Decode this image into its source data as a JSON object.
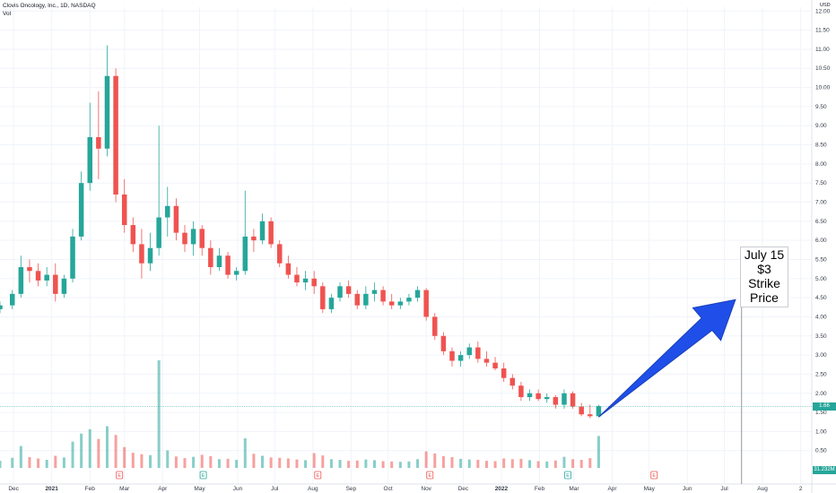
{
  "header": {
    "title": "Clovis Oncology, Inc., 1D, NASDAQ",
    "volume_label": "Vol"
  },
  "axis": {
    "currency": "USD"
  },
  "price_tag": {
    "value": "1.66",
    "color": "#26a69a"
  },
  "volume_tag": {
    "value": "31.232M",
    "color": "#26a69a"
  },
  "annotation": {
    "lines": [
      "July 15",
      "$3",
      "Strike",
      "Price"
    ]
  },
  "events": [
    {
      "label": "E",
      "color": "#ef5350",
      "x": "2021-02-25"
    },
    {
      "label": "E",
      "color": "#26a69a",
      "x": "2021-05-04"
    },
    {
      "label": "E",
      "color": "#ef5350",
      "x": "2021-08-05"
    },
    {
      "label": "E",
      "color": "#ef5350",
      "x": "2021-11-04"
    },
    {
      "label": "E",
      "color": "#26a69a",
      "x": "2022-02-24"
    },
    {
      "label": "E",
      "color": "#ef5350",
      "x": "2022-05-05"
    }
  ],
  "chart_data": {
    "type": "candlestick",
    "title": "Clovis Oncology, Inc., 1D, NASDAQ",
    "y_ticks": [
      "0.50",
      "1.00",
      "1.50",
      "2.00",
      "2.50",
      "3.00",
      "3.50",
      "4.00",
      "4.50",
      "5.00",
      "5.50",
      "6.00",
      "6.50",
      "7.00",
      "7.50",
      "8.00",
      "8.50",
      "9.00",
      "9.50",
      "10.00",
      "10.50",
      "11.00",
      "11.50",
      "12.00"
    ],
    "x_ticks": [
      {
        "label": "Dec",
        "x": "2020-12-01"
      },
      {
        "label": "2021",
        "x": "2021-01-01"
      },
      {
        "label": "Feb",
        "x": "2021-02-01"
      },
      {
        "label": "Mar",
        "x": "2021-03-01"
      },
      {
        "label": "Apr",
        "x": "2021-04-01"
      },
      {
        "label": "May",
        "x": "2021-05-01"
      },
      {
        "label": "Jun",
        "x": "2021-06-01"
      },
      {
        "label": "Jul",
        "x": "2021-07-01"
      },
      {
        "label": "Aug",
        "x": "2021-08-01"
      },
      {
        "label": "Sep",
        "x": "2021-09-01"
      },
      {
        "label": "Oct",
        "x": "2021-10-01"
      },
      {
        "label": "Nov",
        "x": "2021-11-01"
      },
      {
        "label": "Dec",
        "x": "2021-12-01"
      },
      {
        "label": "2022",
        "x": "2022-01-01"
      },
      {
        "label": "Feb",
        "x": "2022-02-01"
      },
      {
        "label": "Mar",
        "x": "2022-03-01"
      },
      {
        "label": "Apr",
        "x": "2022-04-01"
      },
      {
        "label": "May",
        "x": "2022-05-01"
      },
      {
        "label": "Jun",
        "x": "2022-06-01"
      },
      {
        "label": "Jul",
        "x": "2022-07-01"
      },
      {
        "label": "Aug",
        "x": "2022-08-01"
      },
      {
        "label": "2",
        "x": "2022-09-01"
      }
    ],
    "ylim": [
      0.4,
      12.1
    ],
    "xlim": [
      "2020-11-20",
      "2022-09-10"
    ],
    "current_price": 1.66,
    "annotation_date": "2022-07-15",
    "arrow": {
      "from": [
        "2022-03-21",
        1.38
      ],
      "to": [
        "2022-07-10",
        4.45
      ]
    },
    "series": [
      {
        "x": "2020-11-20",
        "o": 4.2,
        "h": 4.4,
        "l": 4.1,
        "c": 4.3,
        "v": 2.1
      },
      {
        "x": "2020-11-30",
        "o": 4.3,
        "h": 4.7,
        "l": 4.2,
        "c": 4.6,
        "v": 3.0
      },
      {
        "x": "2020-12-07",
        "o": 4.6,
        "h": 5.6,
        "l": 4.5,
        "c": 5.3,
        "v": 6.5
      },
      {
        "x": "2020-12-14",
        "o": 5.3,
        "h": 5.5,
        "l": 4.9,
        "c": 5.2,
        "v": 3.2
      },
      {
        "x": "2020-12-21",
        "o": 5.2,
        "h": 5.4,
        "l": 4.8,
        "c": 4.95,
        "v": 2.8
      },
      {
        "x": "2020-12-28",
        "o": 4.95,
        "h": 5.3,
        "l": 4.8,
        "c": 5.1,
        "v": 2.4
      },
      {
        "x": "2021-01-04",
        "o": 5.1,
        "h": 5.4,
        "l": 4.4,
        "c": 4.6,
        "v": 3.6
      },
      {
        "x": "2021-01-11",
        "o": 4.6,
        "h": 5.1,
        "l": 4.5,
        "c": 5.0,
        "v": 3.1
      },
      {
        "x": "2021-01-18",
        "o": 5.0,
        "h": 6.3,
        "l": 4.9,
        "c": 6.1,
        "v": 7.8
      },
      {
        "x": "2021-01-25",
        "o": 6.1,
        "h": 7.8,
        "l": 6.0,
        "c": 7.5,
        "v": 10.2
      },
      {
        "x": "2021-02-01",
        "o": 7.5,
        "h": 9.6,
        "l": 7.3,
        "c": 8.7,
        "v": 11.5
      },
      {
        "x": "2021-02-08",
        "o": 8.7,
        "h": 9.9,
        "l": 7.6,
        "c": 8.4,
        "v": 8.6
      },
      {
        "x": "2021-02-15",
        "o": 8.4,
        "h": 11.1,
        "l": 8.2,
        "c": 10.3,
        "v": 12.4
      },
      {
        "x": "2021-02-22",
        "o": 10.3,
        "h": 10.5,
        "l": 7.0,
        "c": 7.2,
        "v": 9.8
      },
      {
        "x": "2021-03-01",
        "o": 7.2,
        "h": 7.6,
        "l": 6.2,
        "c": 6.4,
        "v": 6.2
      },
      {
        "x": "2021-03-08",
        "o": 6.4,
        "h": 6.6,
        "l": 5.7,
        "c": 5.9,
        "v": 4.5
      },
      {
        "x": "2021-03-15",
        "o": 5.9,
        "h": 6.3,
        "l": 5.0,
        "c": 5.4,
        "v": 4.1
      },
      {
        "x": "2021-03-22",
        "o": 5.4,
        "h": 6.2,
        "l": 5.2,
        "c": 5.8,
        "v": 3.8
      },
      {
        "x": "2021-03-29",
        "o": 5.8,
        "h": 9.0,
        "l": 5.6,
        "c": 6.6,
        "v": 32.0
      },
      {
        "x": "2021-04-05",
        "o": 6.6,
        "h": 7.4,
        "l": 6.1,
        "c": 6.9,
        "v": 5.2
      },
      {
        "x": "2021-04-12",
        "o": 6.9,
        "h": 7.1,
        "l": 6.0,
        "c": 6.2,
        "v": 3.4
      },
      {
        "x": "2021-04-19",
        "o": 6.2,
        "h": 6.4,
        "l": 5.7,
        "c": 5.9,
        "v": 2.9
      },
      {
        "x": "2021-04-26",
        "o": 5.9,
        "h": 6.5,
        "l": 5.6,
        "c": 6.3,
        "v": 3.3
      },
      {
        "x": "2021-05-03",
        "o": 6.3,
        "h": 6.4,
        "l": 5.6,
        "c": 5.8,
        "v": 3.9
      },
      {
        "x": "2021-05-10",
        "o": 5.8,
        "h": 6.0,
        "l": 5.1,
        "c": 5.3,
        "v": 3.5
      },
      {
        "x": "2021-05-17",
        "o": 5.3,
        "h": 5.8,
        "l": 5.2,
        "c": 5.6,
        "v": 2.6
      },
      {
        "x": "2021-05-24",
        "o": 5.6,
        "h": 5.7,
        "l": 5.0,
        "c": 5.1,
        "v": 2.7
      },
      {
        "x": "2021-05-31",
        "o": 5.1,
        "h": 5.3,
        "l": 4.95,
        "c": 5.2,
        "v": 2.4
      },
      {
        "x": "2021-06-07",
        "o": 5.2,
        "h": 7.3,
        "l": 5.1,
        "c": 6.1,
        "v": 8.8
      },
      {
        "x": "2021-06-14",
        "o": 6.1,
        "h": 6.3,
        "l": 5.7,
        "c": 6.0,
        "v": 4.2
      },
      {
        "x": "2021-06-21",
        "o": 6.0,
        "h": 6.7,
        "l": 5.9,
        "c": 6.5,
        "v": 3.6
      },
      {
        "x": "2021-06-28",
        "o": 6.5,
        "h": 6.6,
        "l": 5.8,
        "c": 5.9,
        "v": 3.1
      },
      {
        "x": "2021-07-05",
        "o": 5.9,
        "h": 6.0,
        "l": 5.3,
        "c": 5.4,
        "v": 3.0
      },
      {
        "x": "2021-07-12",
        "o": 5.4,
        "h": 5.6,
        "l": 5.0,
        "c": 5.1,
        "v": 2.8
      },
      {
        "x": "2021-07-19",
        "o": 5.1,
        "h": 5.3,
        "l": 4.8,
        "c": 4.9,
        "v": 2.5
      },
      {
        "x": "2021-07-26",
        "o": 4.9,
        "h": 5.2,
        "l": 4.7,
        "c": 5.0,
        "v": 2.3
      },
      {
        "x": "2021-08-02",
        "o": 5.0,
        "h": 5.2,
        "l": 4.6,
        "c": 4.8,
        "v": 4.4
      },
      {
        "x": "2021-08-09",
        "o": 4.8,
        "h": 4.9,
        "l": 4.1,
        "c": 4.2,
        "v": 3.7
      },
      {
        "x": "2021-08-16",
        "o": 4.2,
        "h": 4.6,
        "l": 4.1,
        "c": 4.5,
        "v": 2.6
      },
      {
        "x": "2021-08-23",
        "o": 4.5,
        "h": 4.9,
        "l": 4.4,
        "c": 4.8,
        "v": 2.4
      },
      {
        "x": "2021-08-30",
        "o": 4.8,
        "h": 4.95,
        "l": 4.5,
        "c": 4.6,
        "v": 2.1
      },
      {
        "x": "2021-09-06",
        "o": 4.6,
        "h": 4.7,
        "l": 4.2,
        "c": 4.3,
        "v": 2.2
      },
      {
        "x": "2021-09-13",
        "o": 4.3,
        "h": 4.8,
        "l": 4.2,
        "c": 4.6,
        "v": 2.5
      },
      {
        "x": "2021-09-20",
        "o": 4.6,
        "h": 4.9,
        "l": 4.4,
        "c": 4.7,
        "v": 2.3
      },
      {
        "x": "2021-09-27",
        "o": 4.7,
        "h": 4.8,
        "l": 4.3,
        "c": 4.4,
        "v": 2.0
      },
      {
        "x": "2021-10-04",
        "o": 4.4,
        "h": 4.6,
        "l": 4.2,
        "c": 4.3,
        "v": 1.9
      },
      {
        "x": "2021-10-11",
        "o": 4.3,
        "h": 4.5,
        "l": 4.2,
        "c": 4.4,
        "v": 1.8
      },
      {
        "x": "2021-10-18",
        "o": 4.4,
        "h": 4.6,
        "l": 4.3,
        "c": 4.5,
        "v": 1.9
      },
      {
        "x": "2021-10-25",
        "o": 4.5,
        "h": 4.8,
        "l": 4.4,
        "c": 4.7,
        "v": 2.6
      },
      {
        "x": "2021-11-01",
        "o": 4.7,
        "h": 4.75,
        "l": 3.9,
        "c": 4.0,
        "v": 4.9
      },
      {
        "x": "2021-11-08",
        "o": 4.0,
        "h": 4.1,
        "l": 3.4,
        "c": 3.5,
        "v": 4.3
      },
      {
        "x": "2021-11-15",
        "o": 3.5,
        "h": 3.6,
        "l": 3.0,
        "c": 3.1,
        "v": 3.5
      },
      {
        "x": "2021-11-22",
        "o": 3.1,
        "h": 3.2,
        "l": 2.7,
        "c": 2.85,
        "v": 3.2
      },
      {
        "x": "2021-11-29",
        "o": 2.85,
        "h": 3.1,
        "l": 2.7,
        "c": 3.0,
        "v": 2.7
      },
      {
        "x": "2021-12-06",
        "o": 3.0,
        "h": 3.3,
        "l": 2.9,
        "c": 3.2,
        "v": 2.5
      },
      {
        "x": "2021-12-13",
        "o": 3.2,
        "h": 3.35,
        "l": 2.8,
        "c": 2.9,
        "v": 2.4
      },
      {
        "x": "2021-12-20",
        "o": 2.9,
        "h": 3.1,
        "l": 2.7,
        "c": 2.8,
        "v": 2.1
      },
      {
        "x": "2021-12-27",
        "o": 2.8,
        "h": 2.95,
        "l": 2.6,
        "c": 2.65,
        "v": 2.0
      },
      {
        "x": "2022-01-03",
        "o": 2.65,
        "h": 2.8,
        "l": 2.3,
        "c": 2.4,
        "v": 2.8
      },
      {
        "x": "2022-01-10",
        "o": 2.4,
        "h": 2.5,
        "l": 2.1,
        "c": 2.2,
        "v": 2.6
      },
      {
        "x": "2022-01-17",
        "o": 2.2,
        "h": 2.3,
        "l": 1.8,
        "c": 1.9,
        "v": 2.7
      },
      {
        "x": "2022-01-24",
        "o": 1.9,
        "h": 2.1,
        "l": 1.8,
        "c": 2.0,
        "v": 2.3
      },
      {
        "x": "2022-01-31",
        "o": 2.0,
        "h": 2.1,
        "l": 1.8,
        "c": 1.85,
        "v": 2.0
      },
      {
        "x": "2022-02-07",
        "o": 1.85,
        "h": 2.0,
        "l": 1.75,
        "c": 1.9,
        "v": 1.9
      },
      {
        "x": "2022-02-14",
        "o": 1.9,
        "h": 1.95,
        "l": 1.6,
        "c": 1.7,
        "v": 2.2
      },
      {
        "x": "2022-02-21",
        "o": 1.7,
        "h": 2.1,
        "l": 1.6,
        "c": 2.0,
        "v": 3.3
      },
      {
        "x": "2022-02-28",
        "o": 2.0,
        "h": 2.05,
        "l": 1.6,
        "c": 1.65,
        "v": 2.6
      },
      {
        "x": "2022-03-07",
        "o": 1.65,
        "h": 1.75,
        "l": 1.4,
        "c": 1.45,
        "v": 2.4
      },
      {
        "x": "2022-03-14",
        "o": 1.45,
        "h": 1.7,
        "l": 1.35,
        "c": 1.4,
        "v": 2.9
      },
      {
        "x": "2022-03-21",
        "o": 1.4,
        "h": 1.7,
        "l": 1.38,
        "c": 1.66,
        "v": 9.5
      }
    ]
  }
}
